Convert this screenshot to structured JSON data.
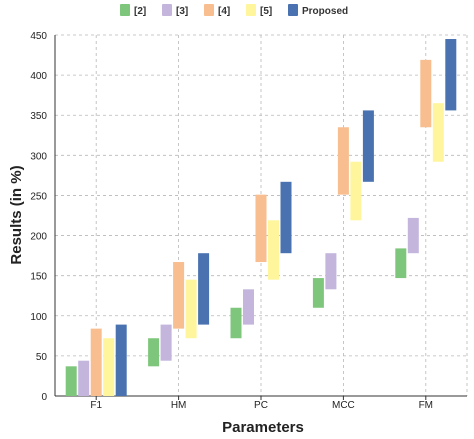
{
  "chart_data": {
    "type": "bar",
    "subtype": "floating-range",
    "xlabel": "Parameters",
    "ylabel": "Results (in %)",
    "ylim": [
      0,
      450
    ],
    "yticks": [
      0,
      50,
      100,
      150,
      200,
      250,
      300,
      350,
      400,
      450
    ],
    "grid": true,
    "legend_position": "top",
    "categories": [
      "F1",
      "HM",
      "PC",
      "MCC",
      "FM"
    ],
    "series": [
      {
        "name": "[2]",
        "color": "#7dc67b",
        "ranges": [
          [
            0,
            37
          ],
          [
            37,
            72
          ],
          [
            72,
            110
          ],
          [
            110,
            147
          ],
          [
            147,
            184
          ]
        ]
      },
      {
        "name": "[3]",
        "color": "#c3b5dc",
        "ranges": [
          [
            0,
            44
          ],
          [
            44,
            89
          ],
          [
            89,
            133
          ],
          [
            133,
            178
          ],
          [
            178,
            222
          ]
        ]
      },
      {
        "name": "[4]",
        "color": "#f8be8f",
        "ranges": [
          [
            0,
            84
          ],
          [
            84,
            167
          ],
          [
            167,
            251
          ],
          [
            251,
            335
          ],
          [
            335,
            419
          ]
        ]
      },
      {
        "name": "[5]",
        "color": "#fff59c",
        "ranges": [
          [
            0,
            72
          ],
          [
            72,
            145
          ],
          [
            145,
            219
          ],
          [
            219,
            292
          ],
          [
            292,
            365
          ]
        ]
      },
      {
        "name": "Proposed",
        "color": "#4a72b0",
        "ranges": [
          [
            0,
            89
          ],
          [
            89,
            178
          ],
          [
            178,
            267
          ],
          [
            267,
            356
          ],
          [
            356,
            445
          ]
        ]
      }
    ]
  }
}
